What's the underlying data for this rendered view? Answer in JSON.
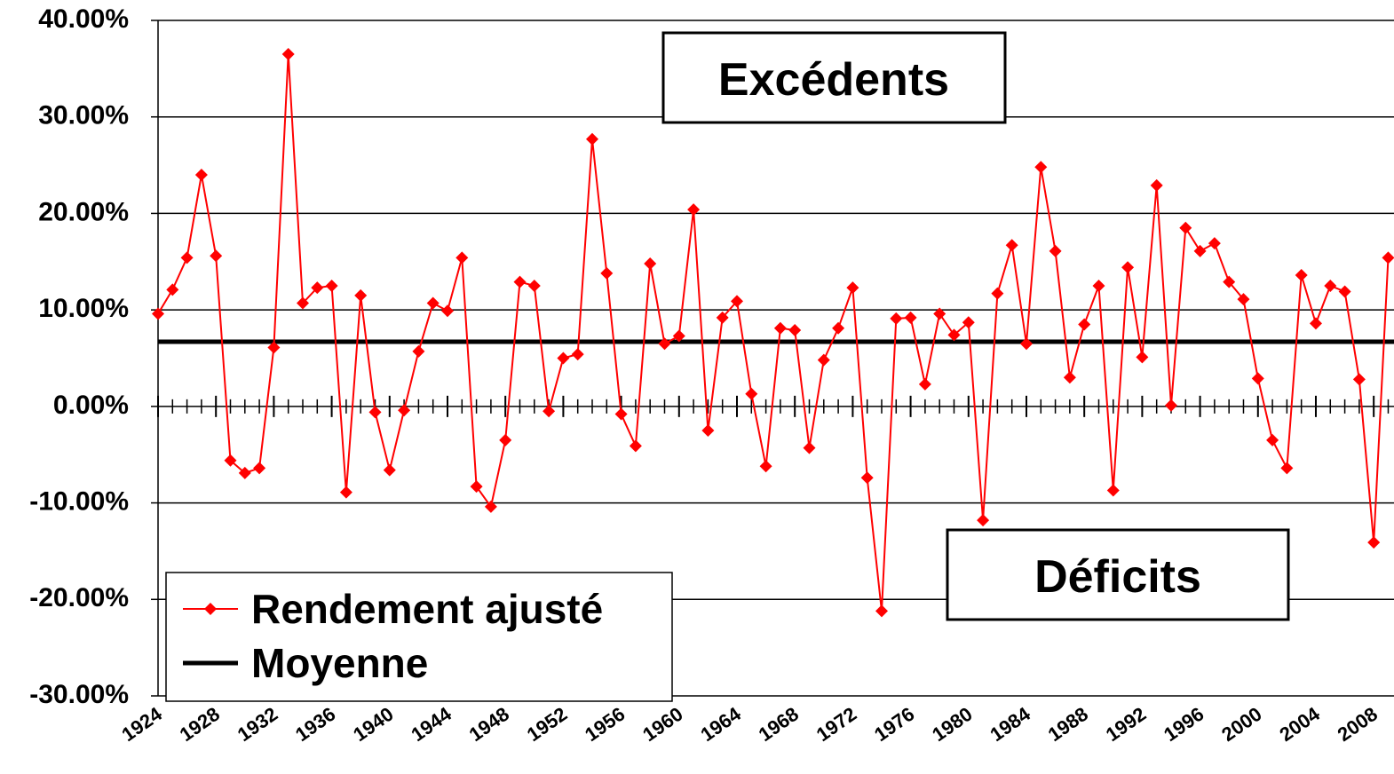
{
  "chart_data": {
    "type": "line",
    "annotations": [
      "Excédents",
      "Déficits"
    ],
    "x": [
      1924,
      1925,
      1926,
      1927,
      1928,
      1929,
      1930,
      1931,
      1932,
      1933,
      1934,
      1935,
      1936,
      1937,
      1938,
      1939,
      1940,
      1941,
      1942,
      1943,
      1944,
      1945,
      1946,
      1947,
      1948,
      1949,
      1950,
      1951,
      1952,
      1953,
      1954,
      1955,
      1956,
      1957,
      1958,
      1959,
      1960,
      1961,
      1962,
      1963,
      1964,
      1965,
      1966,
      1967,
      1968,
      1969,
      1970,
      1971,
      1972,
      1973,
      1974,
      1975,
      1976,
      1977,
      1978,
      1979,
      1980,
      1981,
      1982,
      1983,
      1984,
      1985,
      1986,
      1987,
      1988,
      1989,
      1990,
      1991,
      1992,
      1993,
      1994,
      1995,
      1996,
      1997,
      1998,
      1999,
      2000,
      2001,
      2002,
      2003,
      2004,
      2005,
      2006,
      2007,
      2008,
      2009
    ],
    "series": [
      {
        "name": "Rendement ajusté",
        "color": "#ff0000",
        "values": [
          9.6,
          12.1,
          15.4,
          24.0,
          15.6,
          -5.6,
          -6.9,
          -6.4,
          6.1,
          36.5,
          10.7,
          12.3,
          12.5,
          -8.9,
          11.5,
          -0.6,
          -6.6,
          -0.4,
          5.7,
          10.7,
          9.9,
          15.4,
          -8.3,
          -10.4,
          -3.5,
          12.9,
          12.5,
          -0.5,
          5.0,
          5.4,
          27.7,
          13.8,
          -0.8,
          -4.1,
          14.8,
          6.5,
          7.3,
          20.4,
          -2.5,
          9.2,
          10.9,
          1.3,
          -6.2,
          8.1,
          7.9,
          -4.3,
          4.8,
          8.1,
          12.3,
          -7.4,
          -21.2,
          9.1,
          9.2,
          2.3,
          9.6,
          7.4,
          8.7,
          -11.8,
          11.7,
          16.7,
          6.5,
          24.8,
          16.1,
          3.0,
          8.5,
          12.5,
          -8.7,
          14.4,
          5.1,
          22.9,
          0.1,
          18.5,
          16.1,
          16.9,
          12.9,
          11.1,
          2.9,
          -3.5,
          -6.4,
          13.6,
          8.6,
          12.5,
          11.9,
          2.8,
          -14.1,
          15.4
        ]
      }
    ],
    "reference_line": {
      "name": "Moyenne",
      "value": 6.7,
      "color": "#000000"
    },
    "xlim": [
      1924,
      2009.4
    ],
    "xticks": [
      1924,
      1928,
      1932,
      1936,
      1940,
      1944,
      1948,
      1952,
      1956,
      1960,
      1964,
      1968,
      1972,
      1976,
      1980,
      1984,
      1988,
      1992,
      1996,
      2000,
      2004,
      2008
    ],
    "ylim": [
      -30,
      40
    ],
    "yticks": [
      {
        "value": -30,
        "label": "-30.00%"
      },
      {
        "value": -20,
        "label": "-20.00%"
      },
      {
        "value": -10,
        "label": "-10.00%"
      },
      {
        "value": 0,
        "label": "0.00%"
      },
      {
        "value": 10,
        "label": "10.00%"
      },
      {
        "value": 20,
        "label": "20.00%"
      },
      {
        "value": 30,
        "label": "30.00%"
      },
      {
        "value": 40,
        "label": "40.00%"
      }
    ],
    "grid": true,
    "legend": "lower left"
  }
}
